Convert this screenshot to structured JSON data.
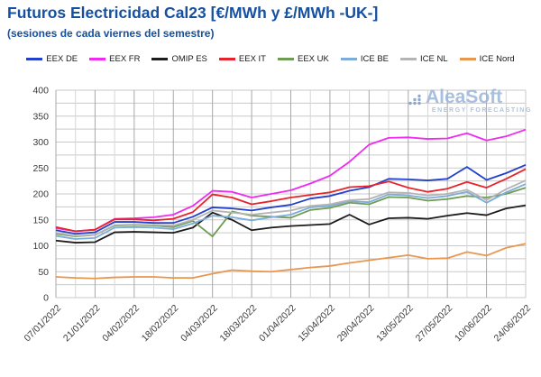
{
  "title": "Futuros Electricidad Cal23 [€/MWh y £/MWh -UK-]",
  "subtitle": "(sesiones de cada viernes del semestre)",
  "watermark": {
    "name": "AleaSoft",
    "tagline": "ENERGY FORECASTING"
  },
  "chart_data": {
    "type": "line",
    "title": "Futuros Electricidad Cal23 [€/MWh y £/MWh -UK-]",
    "x": [
      "07/01/2022",
      "14/01/2022",
      "21/01/2022",
      "28/01/2022",
      "04/02/2022",
      "11/02/2022",
      "18/02/2022",
      "25/02/2022",
      "04/03/2022",
      "11/03/2022",
      "18/03/2022",
      "25/03/2022",
      "01/04/2022",
      "08/04/2022",
      "15/04/2022",
      "22/04/2022",
      "29/04/2022",
      "06/05/2022",
      "13/05/2022",
      "20/05/2022",
      "27/05/2022",
      "03/06/2022",
      "10/06/2022",
      "17/06/2022",
      "24/06/2022"
    ],
    "xtick_labels": [
      "07/01/2022",
      "21/01/2022",
      "04/02/2022",
      "18/02/2022",
      "04/03/2022",
      "18/03/2022",
      "01/04/2022",
      "15/04/2022",
      "29/04/2022",
      "13/05/2022",
      "27/05/2022",
      "10/06/2022",
      "24/06/2022"
    ],
    "xtick_every": 2,
    "yticks": [
      0,
      50,
      100,
      150,
      200,
      250,
      300,
      350,
      400
    ],
    "ylim": [
      0,
      400
    ],
    "grid_minor_step": 25,
    "grid": true,
    "legend_position": "top",
    "series": [
      {
        "name": "EEX DE",
        "color": "#2340cc",
        "values": [
          130,
          123,
          126,
          146,
          146,
          144,
          144,
          156,
          174,
          172,
          168,
          174,
          179,
          191,
          196,
          206,
          213,
          229,
          228,
          226,
          229,
          252,
          227,
          240,
          256
        ]
      },
      {
        "name": "EEX FR",
        "color": "#f02af0",
        "values": [
          134,
          128,
          131,
          152,
          153,
          155,
          160,
          177,
          206,
          204,
          193,
          200,
          207,
          220,
          235,
          262,
          295,
          308,
          309,
          306,
          307,
          317,
          303,
          311,
          324
        ]
      },
      {
        "name": "OMIP ES",
        "color": "#1c1c1c",
        "values": [
          110,
          106,
          107,
          126,
          127,
          126,
          125,
          135,
          164,
          150,
          130,
          135,
          138,
          140,
          142,
          160,
          141,
          153,
          154,
          152,
          158,
          163,
          159,
          172,
          178
        ]
      },
      {
        "name": "EEX IT",
        "color": "#e8232c",
        "values": [
          136,
          128,
          131,
          151,
          151,
          149,
          152,
          165,
          199,
          193,
          180,
          186,
          193,
          198,
          203,
          213,
          215,
          224,
          212,
          204,
          210,
          223,
          212,
          229,
          248
        ]
      },
      {
        "name": "EEX UK",
        "color": "#6f9c53",
        "values": [
          123,
          118,
          121,
          139,
          140,
          139,
          136,
          148,
          118,
          166,
          158,
          156,
          154,
          169,
          173,
          183,
          180,
          194,
          193,
          187,
          190,
          196,
          193,
          200,
          212
        ]
      },
      {
        "name": "ICE BE",
        "color": "#7cacda",
        "values": [
          119,
          113,
          115,
          135,
          136,
          135,
          132,
          143,
          158,
          155,
          149,
          155,
          160,
          174,
          177,
          186,
          184,
          199,
          197,
          192,
          196,
          204,
          183,
          203,
          219
        ]
      },
      {
        "name": "ICE NL",
        "color": "#b4b4b4",
        "values": [
          125,
          119,
          121,
          140,
          141,
          140,
          139,
          150,
          168,
          164,
          160,
          164,
          168,
          177,
          180,
          188,
          190,
          203,
          202,
          197,
          200,
          208,
          188,
          209,
          226
        ]
      },
      {
        "name": "ICE Nord",
        "color": "#e9974e",
        "values": [
          40,
          38,
          37,
          39,
          40,
          40,
          38,
          38,
          46,
          53,
          51,
          50,
          54,
          58,
          61,
          67,
          72,
          77,
          82,
          75,
          76,
          88,
          81,
          96,
          104
        ]
      }
    ]
  }
}
